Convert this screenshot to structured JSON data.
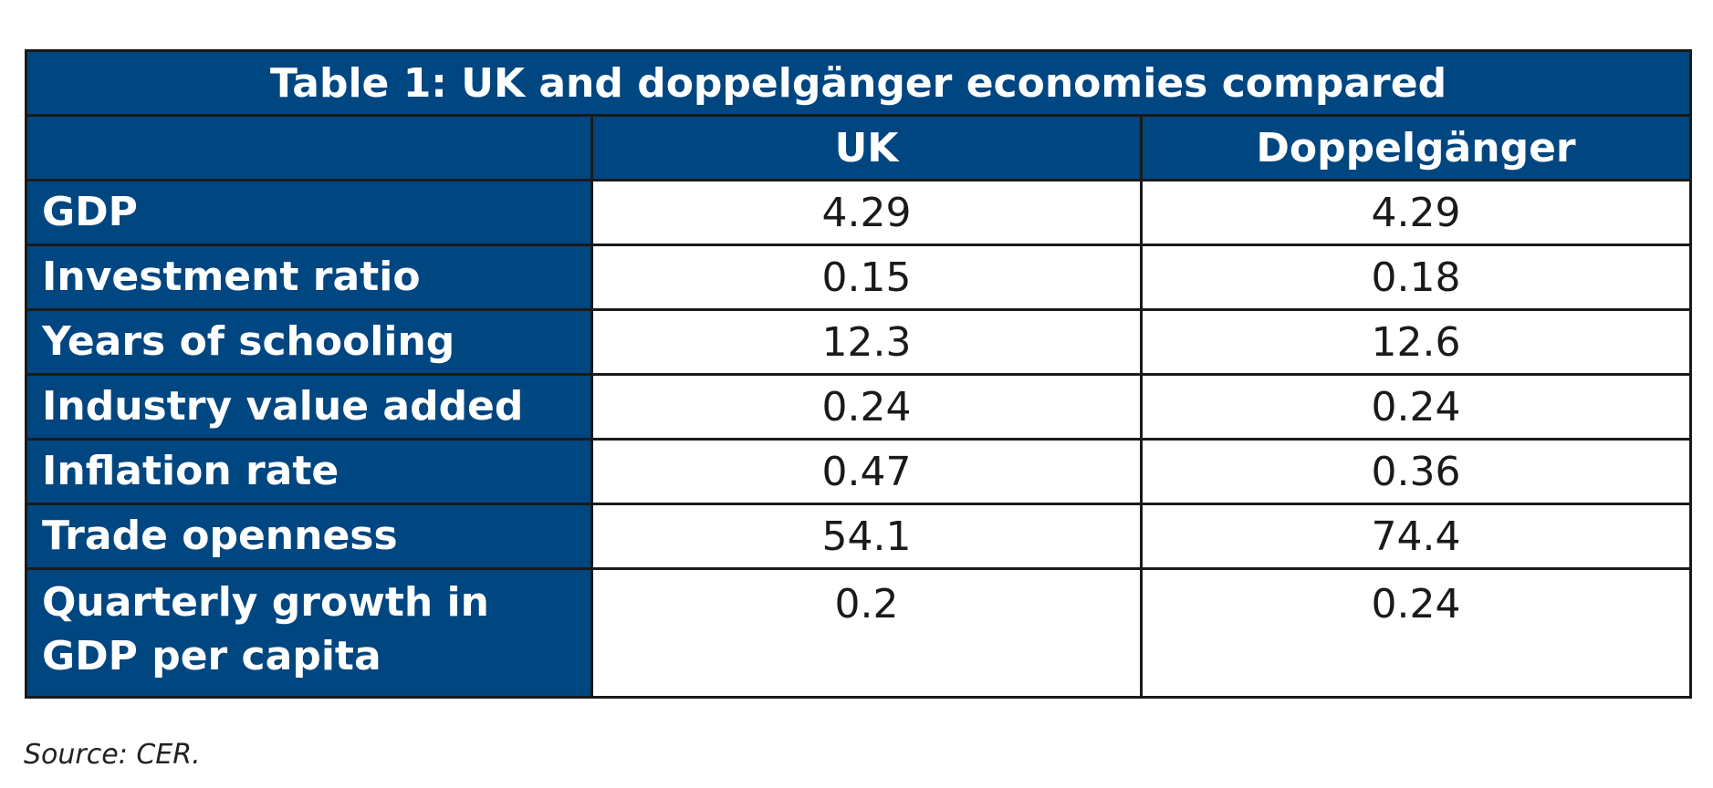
{
  "chart_data": {
    "type": "table",
    "title": "Table 1: UK and doppelgänger economies compared",
    "columns": [
      "",
      "UK",
      "Doppelgänger"
    ],
    "rows": [
      {
        "label": "GDP",
        "uk": "4.29",
        "doppelganger": "4.29"
      },
      {
        "label": "Investment ratio",
        "uk": "0.15",
        "doppelganger": "0.18"
      },
      {
        "label": "Years of schooling",
        "uk": "12.3",
        "doppelganger": "12.6"
      },
      {
        "label": "Industry value added",
        "uk": "0.24",
        "doppelganger": "0.24"
      },
      {
        "label": "Inflation rate",
        "uk": "0.47",
        "doppelganger": "0.36"
      },
      {
        "label": "Trade openness",
        "uk": "54.1",
        "doppelganger": "74.4"
      },
      {
        "label": "Quarterly growth in GDP per capita",
        "uk": "0.2",
        "doppelganger": "0.24"
      }
    ],
    "source": "Source: CER."
  },
  "colors": {
    "header_bg": "#004680",
    "header_text": "#ffffff",
    "border": "#1a1a1a"
  }
}
